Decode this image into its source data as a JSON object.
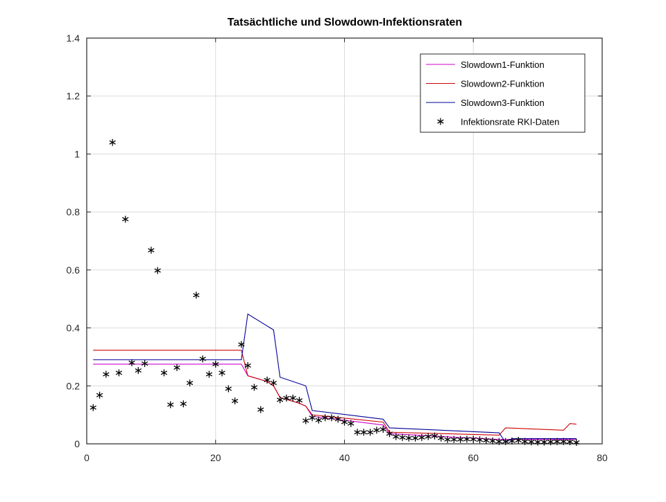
{
  "chart_data": {
    "type": "line",
    "title": "Tatsächtliche und Slowdown-Infektionsraten",
    "xlabel": "",
    "ylabel": "",
    "xlim": [
      0,
      80
    ],
    "ylim": [
      0,
      1.4
    ],
    "xticks": [
      0,
      20,
      40,
      60,
      80
    ],
    "xtick_labels": [
      "0",
      "20",
      "40",
      "60",
      "80"
    ],
    "yticks": [
      0,
      0.2,
      0.4,
      0.6,
      0.8,
      1,
      1.2,
      1.4
    ],
    "ytick_labels": [
      "0",
      "0.2",
      "0.4",
      "0.6",
      "0.8",
      "1",
      "1.2",
      "1.4"
    ],
    "grid": true,
    "legend_position": "top-right",
    "series": [
      {
        "name": "Slowdown1-Funktion",
        "color": "#cc00cc",
        "type": "line",
        "x": [
          1,
          24,
          25,
          28,
          29,
          30,
          33,
          34,
          35,
          46,
          47,
          64,
          76
        ],
        "y": [
          0.275,
          0.275,
          0.235,
          0.215,
          0.2,
          0.16,
          0.14,
          0.13,
          0.095,
          0.065,
          0.035,
          0.015,
          0.015
        ]
      },
      {
        "name": "Slowdown2-Funktion",
        "color": "#cc0000",
        "type": "line",
        "x": [
          1,
          24,
          25,
          28,
          29,
          30,
          33,
          34,
          35,
          46,
          47,
          64,
          65,
          74,
          75,
          76
        ],
        "y": [
          0.323,
          0.323,
          0.235,
          0.215,
          0.2,
          0.16,
          0.14,
          0.13,
          0.1,
          0.075,
          0.04,
          0.03,
          0.055,
          0.047,
          0.07,
          0.068
        ]
      },
      {
        "name": "Slowdown3-Funktion",
        "color": "#000099",
        "type": "line",
        "x": [
          1,
          24,
          25,
          29,
          30,
          34,
          35,
          46,
          47,
          64,
          65,
          66,
          76
        ],
        "y": [
          0.29,
          0.29,
          0.448,
          0.393,
          0.23,
          0.2,
          0.115,
          0.085,
          0.055,
          0.038,
          0.005,
          0.018,
          0.018
        ]
      },
      {
        "name": "Infektionsrate RKI-Daten",
        "color": "#000000",
        "type": "scatter",
        "marker": "*",
        "x": [
          1,
          2,
          3,
          4,
          5,
          6,
          7,
          8,
          9,
          10,
          11,
          12,
          13,
          14,
          15,
          16,
          17,
          18,
          19,
          20,
          21,
          22,
          23,
          24,
          25,
          26,
          27,
          28,
          29,
          30,
          31,
          32,
          33,
          34,
          35,
          36,
          37,
          38,
          39,
          40,
          41,
          42,
          43,
          44,
          45,
          46,
          47,
          48,
          49,
          50,
          51,
          52,
          53,
          54,
          55,
          56,
          57,
          58,
          59,
          60,
          61,
          62,
          63,
          64,
          65,
          66,
          67,
          68,
          69,
          70,
          71,
          72,
          73,
          74,
          75,
          76
        ],
        "y": [
          0.125,
          0.168,
          0.24,
          1.04,
          0.245,
          0.775,
          0.28,
          0.253,
          0.277,
          0.668,
          0.598,
          0.245,
          0.135,
          0.263,
          0.138,
          0.21,
          0.513,
          0.293,
          0.24,
          0.275,
          0.245,
          0.19,
          0.148,
          0.343,
          0.27,
          0.195,
          0.118,
          0.22,
          0.21,
          0.152,
          0.158,
          0.158,
          0.15,
          0.08,
          0.09,
          0.082,
          0.09,
          0.09,
          0.085,
          0.075,
          0.07,
          0.04,
          0.04,
          0.04,
          0.047,
          0.05,
          0.035,
          0.025,
          0.022,
          0.02,
          0.02,
          0.022,
          0.025,
          0.027,
          0.02,
          0.015,
          0.015,
          0.015,
          0.016,
          0.016,
          0.014,
          0.012,
          0.01,
          0.008,
          0.008,
          0.01,
          0.012,
          0.008,
          0.007,
          0.006,
          0.006,
          0.007,
          0.008,
          0.008,
          0.007,
          0.005
        ]
      }
    ]
  }
}
